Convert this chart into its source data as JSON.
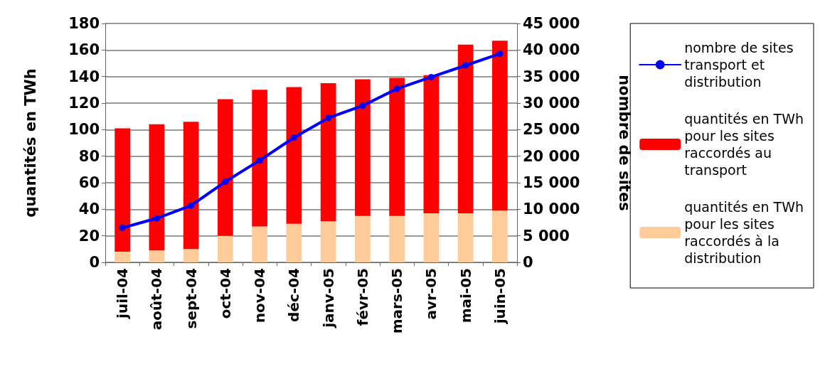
{
  "chart_data": {
    "type": "bar",
    "stacked": true,
    "ylabel": "quantités en TWh",
    "y2label": "nombre de sites",
    "categories": [
      "juil-04",
      "août-04",
      "sept-04",
      "oct-04",
      "nov-04",
      "déc-04",
      "janv-05",
      "févr-05",
      "mars-05",
      "avr-05",
      "mai-05",
      "juin-05"
    ],
    "series": [
      {
        "name": "quantités en TWh pour les sites raccordés à la distribution",
        "color": "#ffcc99",
        "values": [
          8,
          9,
          10,
          20,
          27,
          29,
          31,
          35,
          35,
          37,
          37,
          39
        ]
      },
      {
        "name": "quantités en TWh pour les sites raccordés au transport",
        "color": "#ff0000",
        "values": [
          93,
          95,
          96,
          103,
          103,
          103,
          104,
          103,
          104,
          104,
          127,
          128
        ]
      },
      {
        "name": "nombre de sites transport et distribution",
        "type": "line",
        "axis": "y2",
        "color": "#0000ff",
        "marker": "circle",
        "values": [
          6500,
          8300,
          10700,
          15200,
          19200,
          23500,
          27200,
          29500,
          32700,
          34900,
          37100,
          39300
        ]
      }
    ],
    "ylim": [
      0,
      180
    ],
    "yticks": [
      0,
      20,
      40,
      60,
      80,
      100,
      120,
      140,
      160,
      180
    ],
    "y2lim": [
      0,
      45000
    ],
    "y2ticks": [
      0,
      {
        "value": 5000,
        "label": "5 000"
      },
      {
        "value": 10000,
        "label": "10 000"
      },
      {
        "value": 15000,
        "label": "15 000"
      },
      {
        "value": 20000,
        "label": "20 000"
      },
      {
        "value": 25000,
        "label": "25 000"
      },
      {
        "value": 30000,
        "label": "30 000"
      },
      {
        "value": 35000,
        "label": "35 000"
      },
      {
        "value": 40000,
        "label": "40 000"
      },
      {
        "value": 45000,
        "label": "45 000"
      }
    ],
    "grid": "y",
    "legend": "right"
  }
}
